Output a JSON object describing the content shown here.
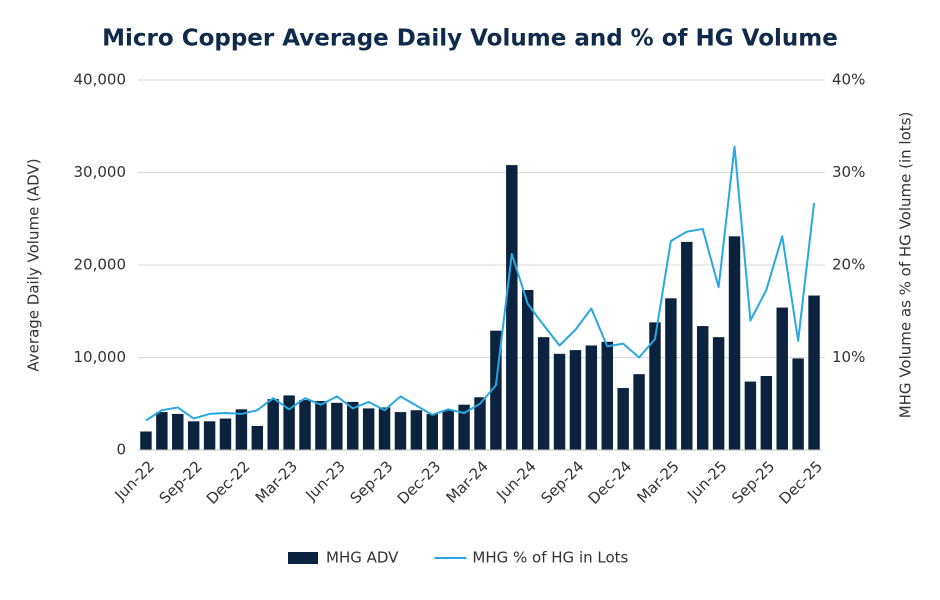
{
  "chart_data": {
    "type": "bar-line",
    "title": "Micro Copper Average Daily Volume and % of HG Volume",
    "ylabel": "Average Daily Volume (ADV)",
    "y2label": "MHG Volume as % of HG Volume (in lots)",
    "categories": [
      "Jun-22",
      null,
      null,
      "Sep-22",
      null,
      null,
      "Dec-22",
      null,
      null,
      "Mar-23",
      null,
      null,
      "Jun-23",
      null,
      null,
      "Sep-23",
      null,
      null,
      "Dec-23",
      null,
      null,
      "Mar-24",
      null,
      null,
      "Jun-24",
      null,
      null,
      "Sep-24",
      null,
      null,
      "Dec-24",
      null,
      null,
      "Mar-25",
      null,
      null,
      "Jun-25",
      null,
      null,
      "Sep-25",
      null,
      null,
      "Dec-25"
    ],
    "series": [
      {
        "name": "MHG ADV",
        "type": "bar",
        "color": "#0c2340",
        "values": [
          2000,
          4100,
          3900,
          3100,
          3100,
          3400,
          4400,
          2600,
          5500,
          5900,
          5400,
          5300,
          5100,
          5200,
          4500,
          4600,
          4100,
          4300,
          3900,
          4300,
          4900,
          5700,
          12900,
          30800,
          17300,
          12200,
          10400,
          10800,
          11300,
          11700,
          6700,
          8200,
          13800,
          16400,
          22500,
          13400,
          12200,
          23100,
          7400,
          8000,
          15400,
          9900,
          16700
        ]
      },
      {
        "name": "MHG % of HG in Lots",
        "type": "line",
        "axis": "y2",
        "color": "#29a8e0",
        "values": [
          3.2,
          4.3,
          4.6,
          3.4,
          3.9,
          4.0,
          3.9,
          4.3,
          5.6,
          4.4,
          5.6,
          4.9,
          5.8,
          4.5,
          5.2,
          4.3,
          5.8,
          4.8,
          3.8,
          4.4,
          4.0,
          5.0,
          7.0,
          21.2,
          15.8,
          13.5,
          11.3,
          13.0,
          15.3,
          11.2,
          11.5,
          10.0,
          12.0,
          22.6,
          23.6,
          23.9,
          17.6,
          32.8,
          14.0,
          17.3,
          23.1,
          11.8,
          26.7
        ]
      }
    ],
    "ylim": [
      0,
      40000
    ],
    "yticks": [
      0,
      {
        "value": 10000,
        "label": "10,000"
      },
      {
        "value": 20000,
        "label": "20,000"
      },
      {
        "value": 30000,
        "label": "30,000"
      },
      {
        "value": 40000,
        "label": "40,000"
      }
    ],
    "y2lim": [
      0,
      40
    ],
    "y2ticks": [
      {
        "value": 10,
        "label": "10%"
      },
      {
        "value": 20,
        "label": "20%"
      },
      {
        "value": 30,
        "label": "30%"
      },
      {
        "value": 40,
        "label": "40%"
      }
    ],
    "grid": true,
    "legend": "bottom"
  }
}
